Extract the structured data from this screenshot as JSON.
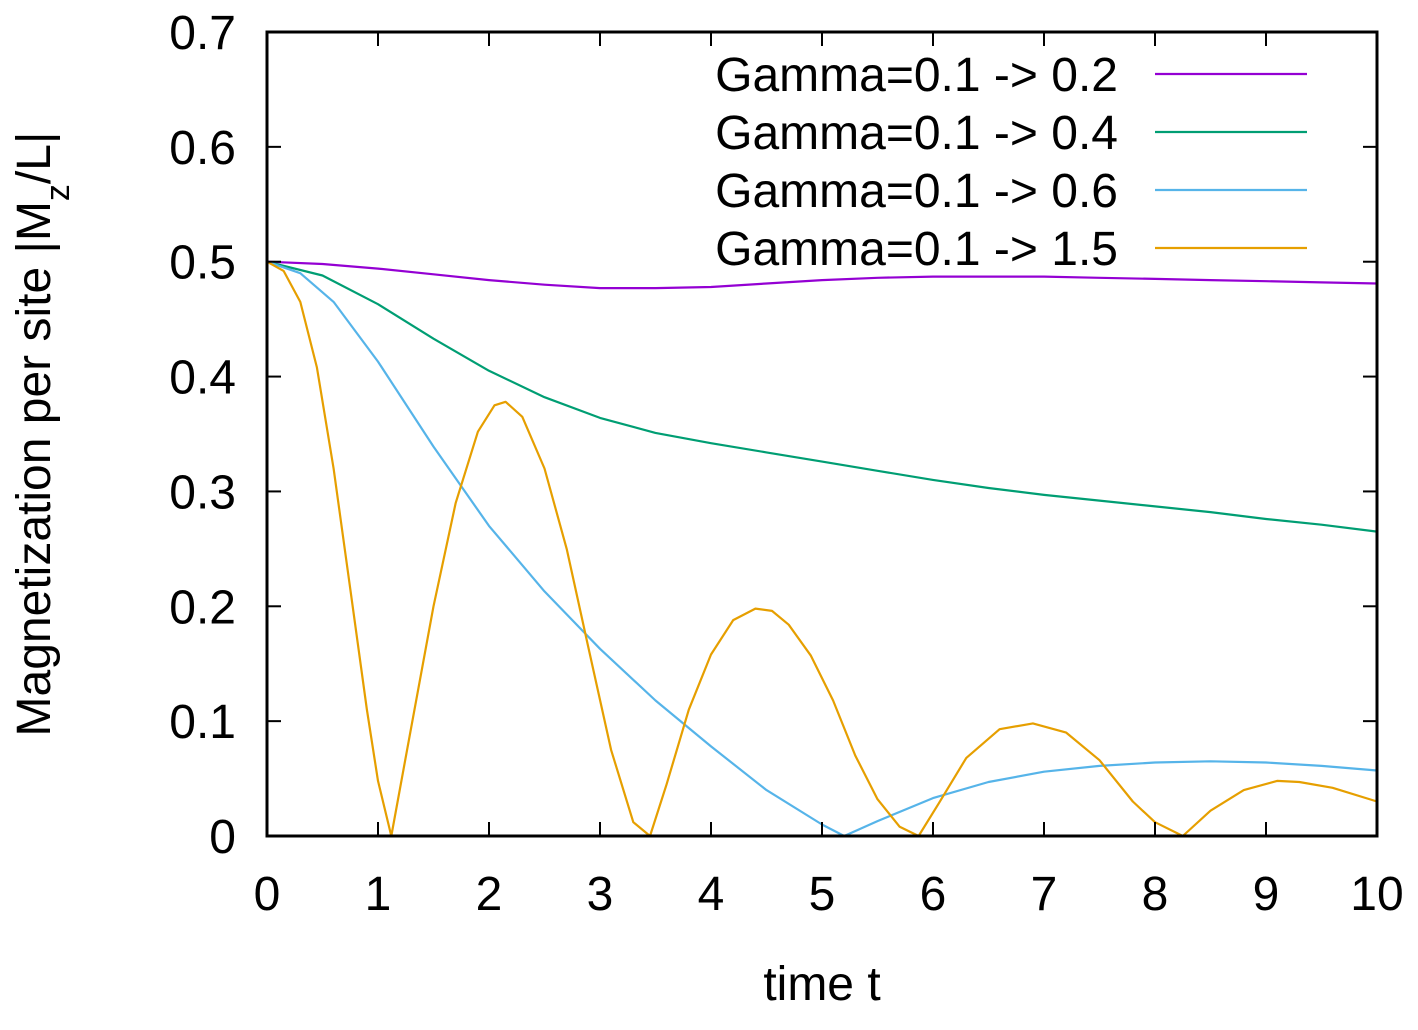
{
  "chart_data": {
    "type": "line",
    "title": "",
    "xlabel": "time t",
    "ylabel": {
      "main": "Magnetization per site |M",
      "subscript": "z",
      "suffix": "/L|"
    },
    "xlim": [
      0,
      10
    ],
    "ylim": [
      0,
      0.7
    ],
    "xticks": [
      0,
      1,
      2,
      3,
      4,
      5,
      6,
      7,
      8,
      9,
      10
    ],
    "yticks": [
      0,
      0.1,
      0.2,
      0.3,
      0.4,
      0.5,
      0.6,
      0.7
    ],
    "grid": false,
    "legend_position": "top-right",
    "series": [
      {
        "name": "Gamma=0.1 -> 0.2",
        "color": "#9400d3",
        "x": [
          0,
          0.5,
          1,
          1.5,
          2,
          2.5,
          3,
          3.5,
          4,
          4.5,
          5,
          5.5,
          6,
          6.5,
          7,
          7.5,
          8,
          8.5,
          9,
          9.5,
          10
        ],
        "y": [
          0.5,
          0.498,
          0.494,
          0.489,
          0.484,
          0.48,
          0.477,
          0.477,
          0.478,
          0.481,
          0.484,
          0.486,
          0.487,
          0.487,
          0.487,
          0.486,
          0.485,
          0.484,
          0.483,
          0.482,
          0.481
        ]
      },
      {
        "name": "Gamma=0.1 -> 0.4",
        "color": "#009e73",
        "x": [
          0,
          0.5,
          1,
          1.5,
          2,
          2.5,
          3,
          3.5,
          4,
          4.5,
          5,
          5.5,
          6,
          6.5,
          7,
          7.5,
          8,
          8.5,
          9,
          9.5,
          10
        ],
        "y": [
          0.5,
          0.488,
          0.463,
          0.433,
          0.405,
          0.382,
          0.364,
          0.351,
          0.342,
          0.334,
          0.326,
          0.318,
          0.31,
          0.303,
          0.297,
          0.292,
          0.287,
          0.282,
          0.276,
          0.271,
          0.265
        ]
      },
      {
        "name": "Gamma=0.1 -> 0.6",
        "color": "#56b4e9",
        "x": [
          0,
          0.3,
          0.6,
          1,
          1.5,
          2,
          2.5,
          3,
          3.5,
          4,
          4.5,
          5,
          5.2,
          5.5,
          6,
          6.5,
          7,
          7.5,
          8,
          8.5,
          9,
          9.5,
          10
        ],
        "y": [
          0.5,
          0.49,
          0.465,
          0.413,
          0.339,
          0.27,
          0.213,
          0.163,
          0.118,
          0.078,
          0.04,
          0.01,
          0.0,
          0.013,
          0.033,
          0.047,
          0.056,
          0.061,
          0.064,
          0.065,
          0.064,
          0.061,
          0.057
        ]
      },
      {
        "name": "Gamma=0.1 -> 1.5",
        "color": "#e69f00",
        "x": [
          0,
          0.15,
          0.3,
          0.45,
          0.6,
          0.75,
          0.9,
          1.0,
          1.12,
          1.3,
          1.5,
          1.7,
          1.9,
          2.05,
          2.15,
          2.3,
          2.5,
          2.7,
          2.9,
          3.1,
          3.3,
          3.45,
          3.6,
          3.8,
          4.0,
          4.2,
          4.4,
          4.55,
          4.7,
          4.9,
          5.1,
          5.3,
          5.5,
          5.7,
          5.87,
          6.05,
          6.3,
          6.6,
          6.9,
          7.2,
          7.5,
          7.8,
          8.0,
          8.25,
          8.5,
          8.8,
          9.1,
          9.3,
          9.6,
          10.0
        ],
        "y": [
          0.5,
          0.492,
          0.465,
          0.408,
          0.32,
          0.215,
          0.11,
          0.048,
          0.0,
          0.095,
          0.2,
          0.29,
          0.352,
          0.375,
          0.378,
          0.365,
          0.32,
          0.25,
          0.162,
          0.075,
          0.012,
          0.0,
          0.045,
          0.11,
          0.158,
          0.188,
          0.198,
          0.196,
          0.184,
          0.157,
          0.118,
          0.07,
          0.032,
          0.008,
          0.0,
          0.028,
          0.068,
          0.093,
          0.098,
          0.09,
          0.066,
          0.03,
          0.012,
          0.0,
          0.022,
          0.04,
          0.048,
          0.047,
          0.042,
          0.03
        ]
      }
    ]
  }
}
